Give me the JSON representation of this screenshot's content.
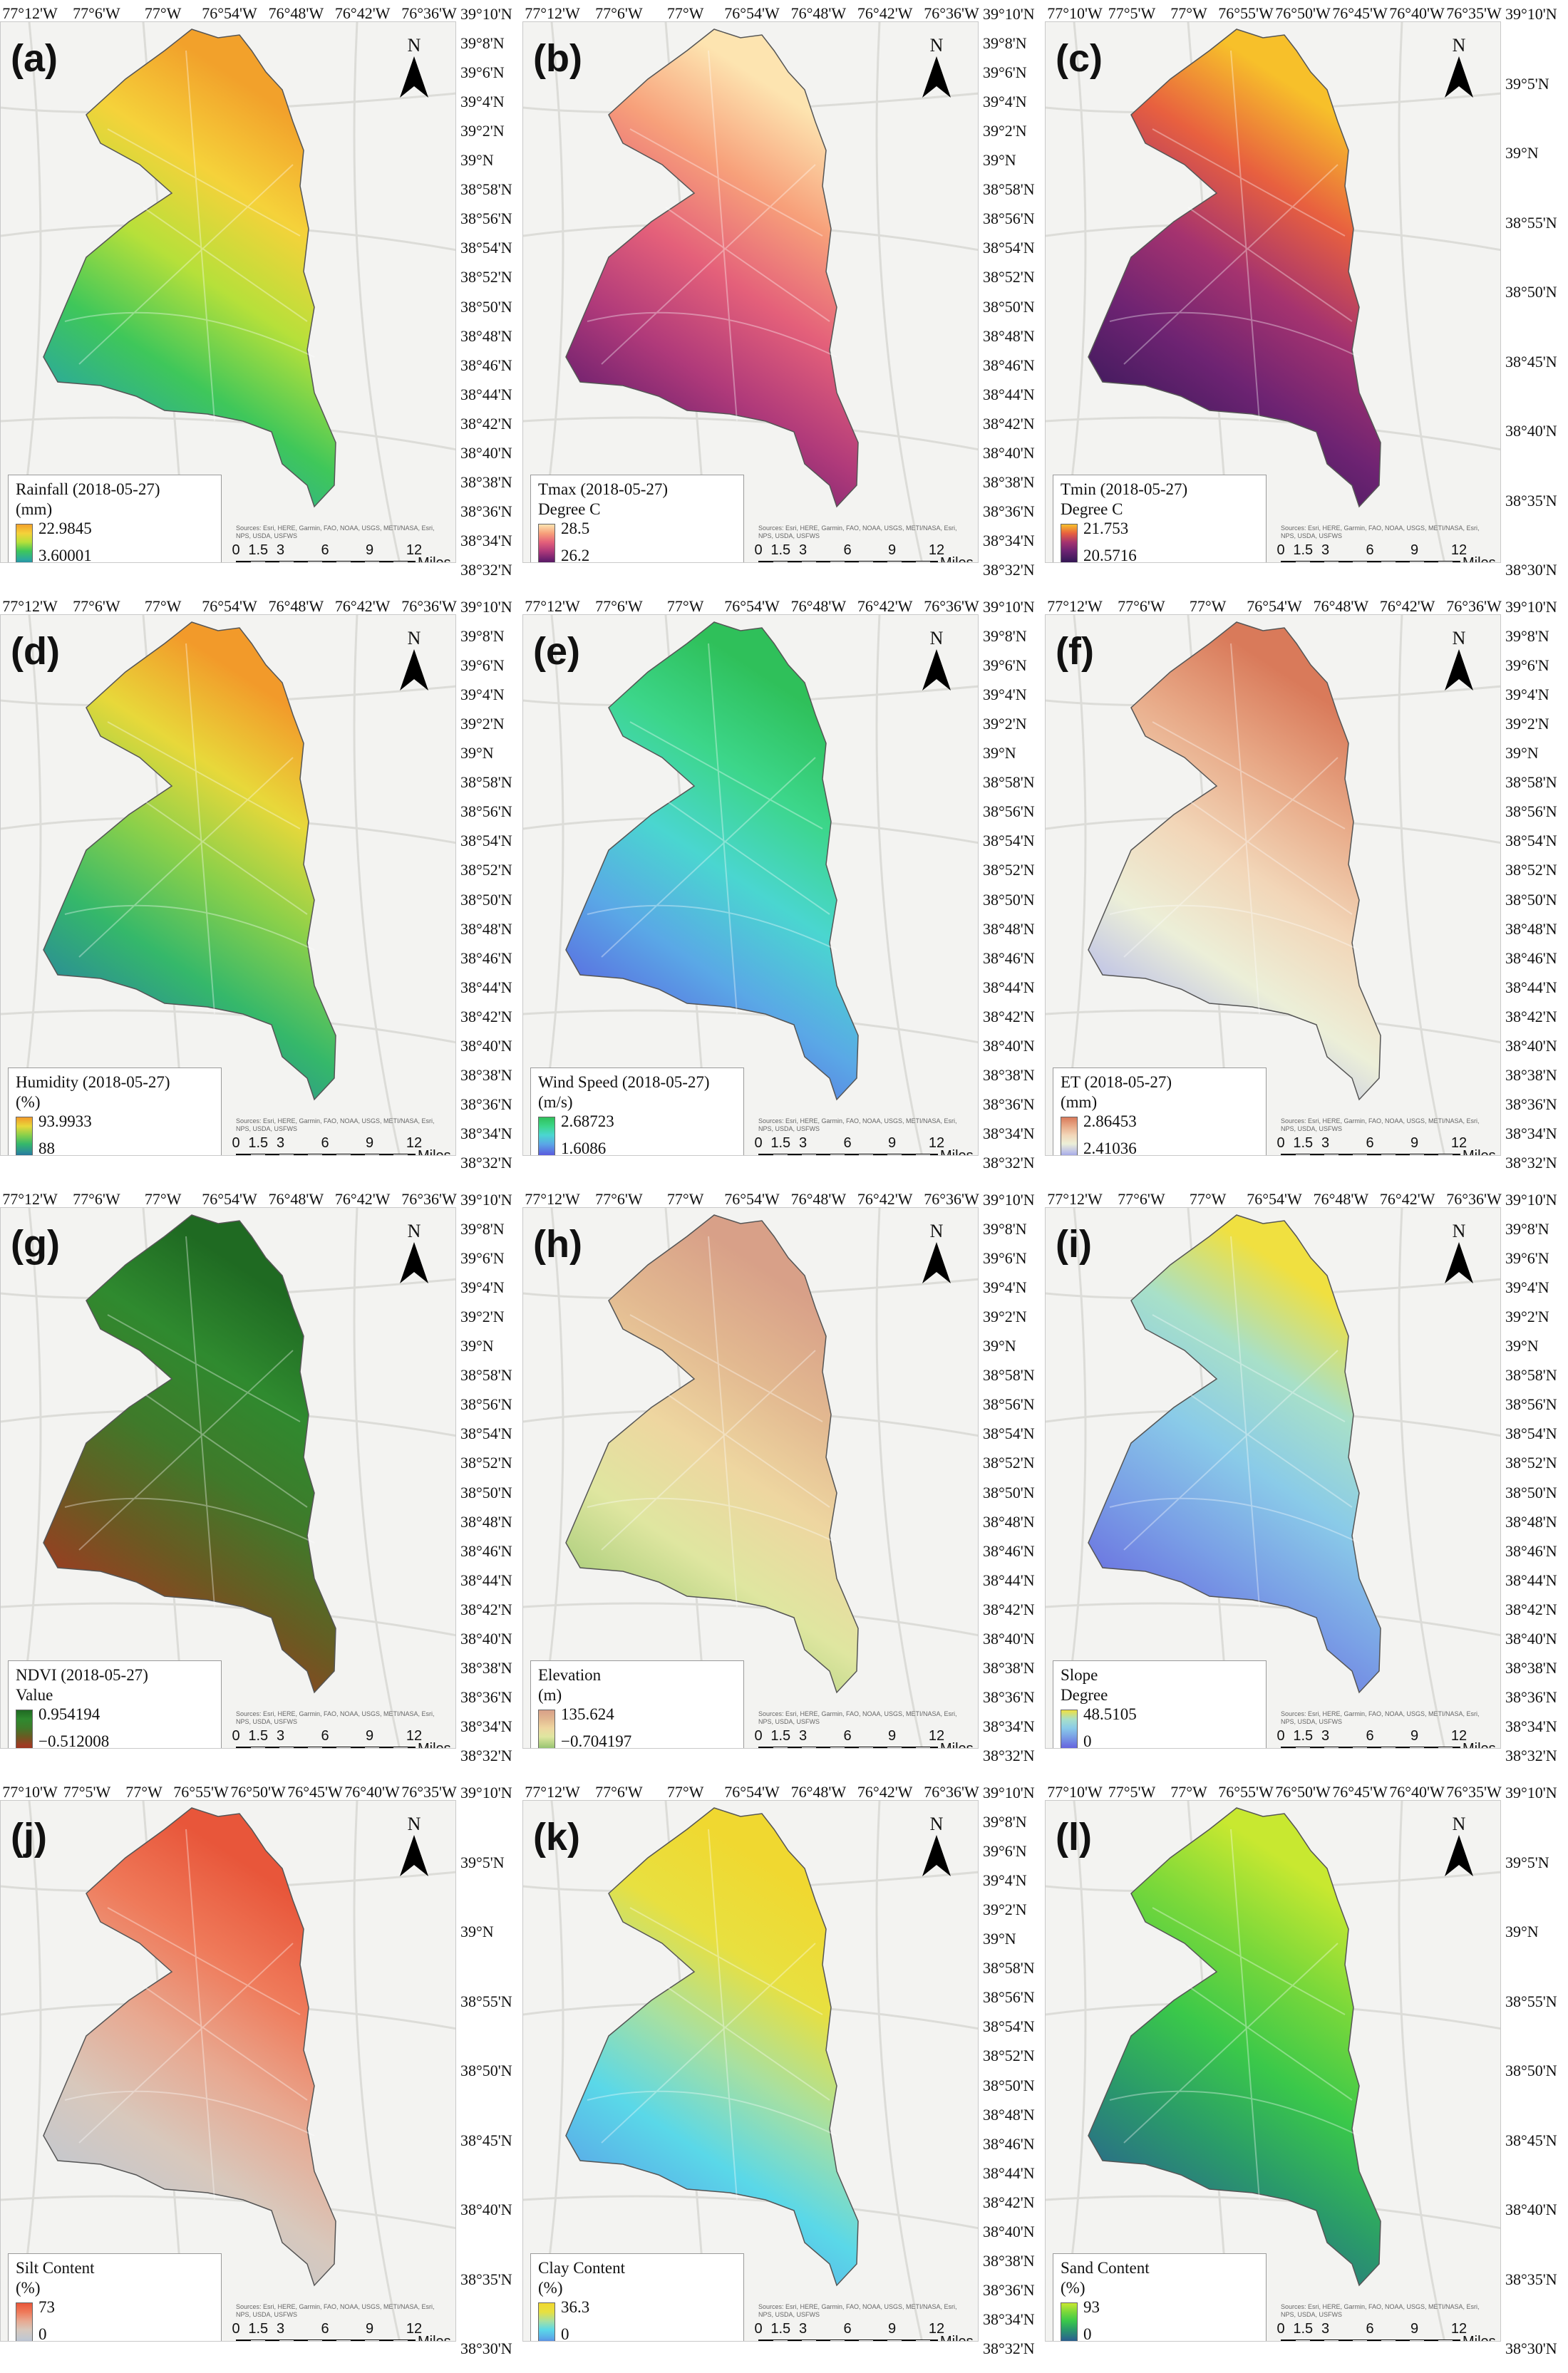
{
  "common": {
    "north_label": "N",
    "scale_ticks": [
      "0",
      "1.5",
      "3",
      "6",
      "9",
      "12"
    ],
    "scale_unit": "Miles",
    "credits": "Sources: Esri, HERE, Garmin, FAO, NOAA, USGS, METI/NASA, Esri, NPS, USDA, USFWS"
  },
  "panels": [
    {
      "id": "a",
      "label": "(a)",
      "legend_title": "Rainfall (2018-05-27)",
      "legend_unit": "(mm)",
      "legend_max": "22.9845",
      "legend_min": "3.60001",
      "colors_high": "#1f6fbf",
      "colors_low": "#f29b1a",
      "ramp": [
        "#2b4c9b",
        "#2aa7a0",
        "#3fc75a",
        "#b6e03a",
        "#f5d23a",
        "#f2a12b"
      ],
      "lon_ticks": [
        "77°12'W",
        "77°6'W",
        "77°W",
        "76°54'W",
        "76°48'W",
        "76°42'W",
        "76°36'W"
      ],
      "lat_ticks": [
        "39°10'N",
        "39°8'N",
        "39°6'N",
        "39°4'N",
        "39°2'N",
        "39°N",
        "38°58'N",
        "38°56'N",
        "38°54'N",
        "38°52'N",
        "38°50'N",
        "38°48'N",
        "38°46'N",
        "38°44'N",
        "38°42'N",
        "38°40'N",
        "38°38'N",
        "38°36'N",
        "38°34'N",
        "38°32'N"
      ]
    },
    {
      "id": "b",
      "label": "(b)",
      "legend_title": "Tmax (2018-05-27)",
      "legend_unit": "Degree C",
      "legend_max": "28.5",
      "legend_min": "26.2",
      "ramp": [
        "#22113f",
        "#6a1f6e",
        "#b03a7a",
        "#e4607a",
        "#f7a07a",
        "#fde4b0"
      ],
      "lon_ticks": [
        "77°12'W",
        "77°6'W",
        "77°W",
        "76°54'W",
        "76°48'W",
        "76°42'W",
        "76°36'W"
      ],
      "lat_ticks": [
        "39°10'N",
        "39°8'N",
        "39°6'N",
        "39°4'N",
        "39°2'N",
        "39°N",
        "38°58'N",
        "38°56'N",
        "38°54'N",
        "38°52'N",
        "38°50'N",
        "38°48'N",
        "38°46'N",
        "38°44'N",
        "38°42'N",
        "38°40'N",
        "38°38'N",
        "38°36'N",
        "38°34'N",
        "38°32'N"
      ]
    },
    {
      "id": "c",
      "label": "(c)",
      "legend_title": "Tmin (2018-05-27)",
      "legend_unit": "Degree C",
      "legend_max": "21.753",
      "legend_min": "20.5716",
      "ramp": [
        "#1c0f33",
        "#3e1a5c",
        "#6d2372",
        "#a5336f",
        "#e8603f",
        "#f7c02a"
      ],
      "lon_ticks": [
        "77°10'W",
        "77°5'W",
        "77°W",
        "76°55'W",
        "76°50'W",
        "76°45'W",
        "76°40'W",
        "76°35'W"
      ],
      "lat_ticks": [
        "39°10'N",
        "39°5'N",
        "39°N",
        "38°55'N",
        "38°50'N",
        "38°45'N",
        "38°40'N",
        "38°35'N",
        "38°30'N"
      ]
    },
    {
      "id": "d",
      "label": "(d)",
      "legend_title": "Humidity (2018-05-27)",
      "legend_unit": "(%)",
      "legend_max": "93.9933",
      "legend_min": "88",
      "ramp": [
        "#2c3c8c",
        "#2a8a9a",
        "#35b86a",
        "#8ad04a",
        "#e8d83a",
        "#f29a2a"
      ],
      "lon_ticks": [
        "77°12'W",
        "77°6'W",
        "77°W",
        "76°54'W",
        "76°48'W",
        "76°42'W",
        "76°36'W"
      ],
      "lat_ticks": [
        "39°10'N",
        "39°8'N",
        "39°6'N",
        "39°4'N",
        "39°2'N",
        "39°N",
        "38°58'N",
        "38°56'N",
        "38°54'N",
        "38°52'N",
        "38°50'N",
        "38°48'N",
        "38°46'N",
        "38°44'N",
        "38°42'N",
        "38°40'N",
        "38°38'N",
        "38°36'N",
        "38°34'N",
        "38°32'N"
      ]
    },
    {
      "id": "e",
      "label": "(e)",
      "legend_title": "Wind Speed (2018-05-27)",
      "legend_unit": "(m/s)",
      "legend_max": "2.68723",
      "legend_min": "1.6086",
      "ramp": [
        "#5b2fd6",
        "#5a6be0",
        "#5aa8e6",
        "#4ad6d0",
        "#3cd68a",
        "#2fc05a"
      ],
      "lon_ticks": [
        "77°12'W",
        "77°6'W",
        "77°W",
        "76°54'W",
        "76°48'W",
        "76°42'W",
        "76°36'W"
      ],
      "lat_ticks": [
        "39°10'N",
        "39°8'N",
        "39°6'N",
        "39°4'N",
        "39°2'N",
        "39°N",
        "38°58'N",
        "38°56'N",
        "38°54'N",
        "38°52'N",
        "38°50'N",
        "38°48'N",
        "38°46'N",
        "38°44'N",
        "38°42'N",
        "38°40'N",
        "38°38'N",
        "38°36'N",
        "38°34'N",
        "38°32'N"
      ]
    },
    {
      "id": "f",
      "label": "(f)",
      "legend_title": "ET (2018-05-27)",
      "legend_unit": "(mm)",
      "legend_max": "2.86453",
      "legend_min": "2.41036",
      "ramp": [
        "#7a7ad8",
        "#b8bce8",
        "#ecefd8",
        "#f2d6b8",
        "#e8aa88",
        "#d97a5a"
      ],
      "lon_ticks": [
        "77°12'W",
        "77°6'W",
        "77°W",
        "76°54'W",
        "76°48'W",
        "76°42'W",
        "76°36'W"
      ],
      "lat_ticks": [
        "39°10'N",
        "39°8'N",
        "39°6'N",
        "39°4'N",
        "39°2'N",
        "39°N",
        "38°58'N",
        "38°56'N",
        "38°54'N",
        "38°52'N",
        "38°50'N",
        "38°48'N",
        "38°46'N",
        "38°44'N",
        "38°42'N",
        "38°40'N",
        "38°38'N",
        "38°36'N",
        "38°34'N",
        "38°32'N"
      ]
    },
    {
      "id": "g",
      "label": "(g)",
      "legend_title": "NDVI (2018-05-27)",
      "legend_unit": "Value",
      "legend_max": "0.954194",
      "legend_min": "−0.512008",
      "ramp": [
        "#8b2b1a",
        "#a03a22",
        "#6a5a22",
        "#3f7a2a",
        "#2f8a2f",
        "#1f6a22"
      ],
      "lon_ticks": [
        "77°12'W",
        "77°6'W",
        "77°W",
        "76°54'W",
        "76°48'W",
        "76°42'W",
        "76°36'W"
      ],
      "lat_ticks": [
        "39°10'N",
        "39°8'N",
        "39°6'N",
        "39°4'N",
        "39°2'N",
        "39°N",
        "38°58'N",
        "38°56'N",
        "38°54'N",
        "38°52'N",
        "38°50'N",
        "38°48'N",
        "38°46'N",
        "38°44'N",
        "38°42'N",
        "38°40'N",
        "38°38'N",
        "38°36'N",
        "38°34'N",
        "38°32'N"
      ]
    },
    {
      "id": "h",
      "label": "(h)",
      "legend_title": "Elevation",
      "legend_unit": "(m)",
      "legend_max": "135.624",
      "legend_min": "−0.704197",
      "ramp": [
        "#6aa86a",
        "#a8cc7a",
        "#dfe6a0",
        "#eed6a0",
        "#e2b890",
        "#d8a088"
      ],
      "lon_ticks": [
        "77°12'W",
        "77°6'W",
        "77°W",
        "76°54'W",
        "76°48'W",
        "76°42'W",
        "76°36'W"
      ],
      "lat_ticks": [
        "39°10'N",
        "39°8'N",
        "39°6'N",
        "39°4'N",
        "39°2'N",
        "39°N",
        "38°58'N",
        "38°56'N",
        "38°54'N",
        "38°52'N",
        "38°50'N",
        "38°48'N",
        "38°46'N",
        "38°44'N",
        "38°42'N",
        "38°40'N",
        "38°38'N",
        "38°36'N",
        "38°34'N",
        "38°32'N"
      ]
    },
    {
      "id": "i",
      "label": "(i)",
      "legend_title": "Slope",
      "legend_unit": "Degree",
      "legend_max": "48.5105",
      "legend_min": "0",
      "ramp": [
        "#5a4ad8",
        "#6a70e0",
        "#7aa0e6",
        "#8acbe8",
        "#a8e0c8",
        "#f0e040"
      ],
      "lon_ticks": [
        "77°12'W",
        "77°6'W",
        "77°W",
        "76°54'W",
        "76°48'W",
        "76°42'W",
        "76°36'W"
      ],
      "lat_ticks": [
        "39°10'N",
        "39°8'N",
        "39°6'N",
        "39°4'N",
        "39°2'N",
        "39°N",
        "38°58'N",
        "38°56'N",
        "38°54'N",
        "38°52'N",
        "38°50'N",
        "38°48'N",
        "38°46'N",
        "38°44'N",
        "38°42'N",
        "38°40'N",
        "38°38'N",
        "38°36'N",
        "38°34'N",
        "38°32'N"
      ]
    },
    {
      "id": "j",
      "label": "(j)",
      "legend_title": "Silt Content",
      "legend_unit": "(%)",
      "legend_max": "73",
      "legend_min": "0",
      "ramp": [
        "#a8b8d8",
        "#c2c8d0",
        "#d8c8bc",
        "#e8a890",
        "#ef7a5a",
        "#e8563a"
      ],
      "lon_ticks": [
        "77°10'W",
        "77°5'W",
        "77°W",
        "76°55'W",
        "76°50'W",
        "76°45'W",
        "76°40'W",
        "76°35'W"
      ],
      "lat_ticks": [
        "39°10'N",
        "39°5'N",
        "39°N",
        "38°55'N",
        "38°50'N",
        "38°45'N",
        "38°40'N",
        "38°35'N",
        "38°30'N"
      ]
    },
    {
      "id": "k",
      "label": "(k)",
      "legend_title": "Clay Content",
      "legend_unit": "(%)",
      "legend_max": "36.3",
      "legend_min": "0",
      "ramp": [
        "#5a4ad0",
        "#5aa8e8",
        "#5ad8e8",
        "#a8e0a0",
        "#e8e040",
        "#f0d830"
      ],
      "lon_ticks": [
        "77°12'W",
        "77°6'W",
        "77°W",
        "76°54'W",
        "76°48'W",
        "76°42'W",
        "76°36'W"
      ],
      "lat_ticks": [
        "39°10'N",
        "39°8'N",
        "39°6'N",
        "39°4'N",
        "39°2'N",
        "39°N",
        "38°58'N",
        "38°56'N",
        "38°54'N",
        "38°52'N",
        "38°50'N",
        "38°48'N",
        "38°46'N",
        "38°44'N",
        "38°42'N",
        "38°40'N",
        "38°38'N",
        "38°36'N",
        "38°34'N",
        "38°32'N"
      ]
    },
    {
      "id": "l",
      "label": "(l)",
      "legend_title": "Sand Content",
      "legend_unit": "(%)",
      "legend_max": "93",
      "legend_min": "0",
      "ramp": [
        "#2a3a8a",
        "#2a6a8a",
        "#2a9a6a",
        "#3ac84a",
        "#7ad83a",
        "#c8e830"
      ],
      "lon_ticks": [
        "77°10'W",
        "77°5'W",
        "77°W",
        "76°55'W",
        "76°50'W",
        "76°45'W",
        "76°40'W",
        "76°35'W"
      ],
      "lat_ticks": [
        "39°10'N",
        "39°5'N",
        "39°N",
        "38°55'N",
        "38°50'N",
        "38°45'N",
        "38°40'N",
        "38°35'N",
        "38°30'N"
      ]
    }
  ]
}
